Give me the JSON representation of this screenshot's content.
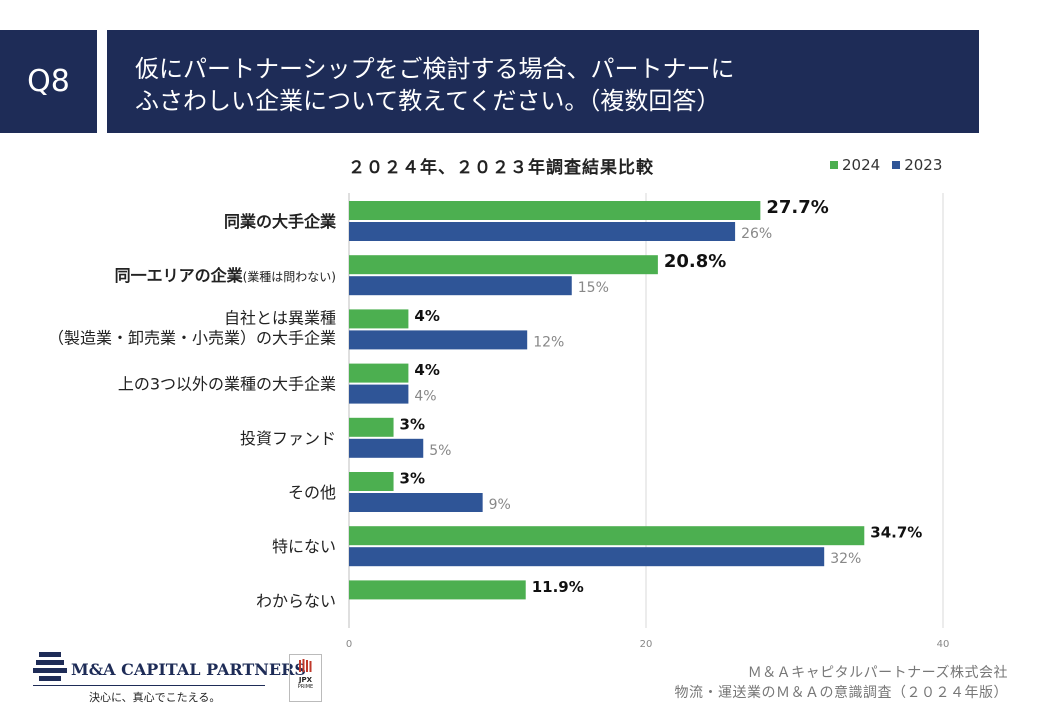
{
  "header": {
    "question_label": "Q8",
    "title_line1": "仮にパートナーシップをご検討する場合、パートナーに",
    "title_line2": "ふさわしい企業について教えてください。（複数回答）"
  },
  "legend": {
    "items": [
      {
        "label": "2024",
        "color": "#4caf50"
      },
      {
        "label": "2023",
        "color": "#2f5597"
      }
    ]
  },
  "chart_data": {
    "type": "bar",
    "orientation": "horizontal",
    "title": "２０２４年、２０２３年調査結果比較",
    "xlim": [
      0,
      40
    ],
    "xticks": [
      0,
      20,
      40
    ],
    "categories": [
      {
        "line1": "同業の大手企業",
        "line2": "",
        "note": ""
      },
      {
        "line1": "同一エリアの企業",
        "line2": "",
        "note": "(業種は問わない)"
      },
      {
        "line1": "自社とは異業種",
        "line2": "（製造業・卸売業・小売業）の大手企業",
        "note": ""
      },
      {
        "line1": "上の3つ以外の業種の大手企業",
        "line2": "",
        "note": ""
      },
      {
        "line1": "投資ファンド",
        "line2": "",
        "note": ""
      },
      {
        "line1": "その他",
        "line2": "",
        "note": ""
      },
      {
        "line1": "特にない",
        "line2": "",
        "note": ""
      },
      {
        "line1": "わからない",
        "line2": "",
        "note": ""
      }
    ],
    "category_bold": [
      true,
      true,
      false,
      false,
      false,
      false,
      false,
      false
    ],
    "series": [
      {
        "name": "2024",
        "color": "#4caf50",
        "values": [
          27.7,
          20.8,
          4,
          4,
          3,
          3,
          34.7,
          11.9
        ],
        "labels": [
          "27.7%",
          "20.8%",
          "4%",
          "4%",
          "3%",
          "3%",
          "34.7%",
          "11.9%"
        ]
      },
      {
        "name": "2023",
        "color": "#2f5597",
        "values": [
          26,
          15,
          12,
          4,
          5,
          9,
          32,
          null
        ],
        "labels": [
          "26%",
          "15%",
          "12%",
          "4%",
          "5%",
          "9%",
          "32%",
          null
        ]
      }
    ]
  },
  "footer": {
    "company": "Ｍ＆Ａキャピタルパートナーズ株式会社",
    "survey": "物流・運送業のＭ＆Ａの意識調査（２０２４年版）"
  },
  "logo": {
    "name": "M&A CAPITAL PARTNERS",
    "tagline": "決心に、真心でこたえる。"
  },
  "badge": {
    "line1": "JPX",
    "line2": "PRIME"
  }
}
